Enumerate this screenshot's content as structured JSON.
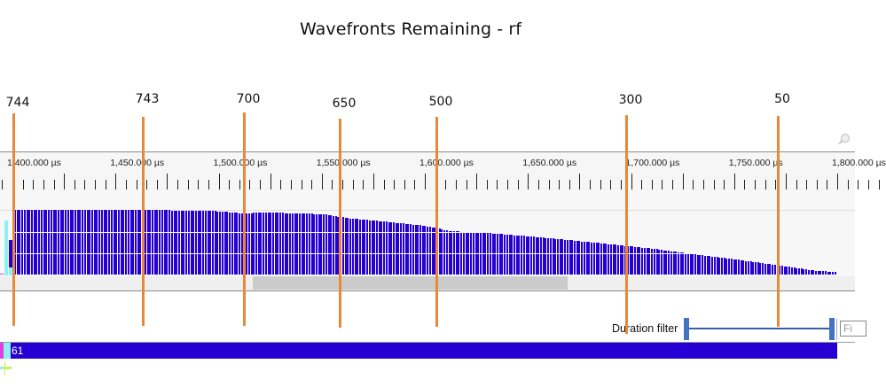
{
  "chart_data": {
    "type": "bar",
    "title": "Wavefronts Remaining - rf",
    "xlabel": "",
    "ylabel": "",
    "x_unit": "µs",
    "x_ticks": [
      "1,400.000 µs",
      "1,450.000 µs",
      "1,500.000 µs",
      "1,550.000 µs",
      "1,600.000 µs",
      "1,650.000 µs",
      "1,700.000 µs",
      "1,750.000 µs",
      "1,800.000 µs"
    ],
    "x_tick_values": [
      1400,
      1450,
      1500,
      1550,
      1600,
      1650,
      1700,
      1750,
      1800
    ],
    "xlim": [
      1397,
      1822
    ],
    "ylim": [
      0,
      744
    ],
    "annotations": [
      {
        "label": "744",
        "x_us": 1398
      },
      {
        "label": "743",
        "x_us": 1464
      },
      {
        "label": "700",
        "x_us": 1513
      },
      {
        "label": "650",
        "x_us": 1562
      },
      {
        "label": "500",
        "x_us": 1612
      },
      {
        "label": "300",
        "x_us": 1709
      },
      {
        "label": "50",
        "x_us": 1787
      }
    ],
    "series": [
      {
        "name": "Wavefronts Remaining",
        "x_start_us": 1398,
        "x_end_us": 1821,
        "profile": [
          [
            1398,
            744
          ],
          [
            1470,
            743
          ],
          [
            1482,
            735
          ],
          [
            1500,
            728
          ],
          [
            1513,
            700
          ],
          [
            1518,
            712
          ],
          [
            1540,
            706
          ],
          [
            1552,
            690
          ],
          [
            1562,
            650
          ],
          [
            1580,
            610
          ],
          [
            1600,
            560
          ],
          [
            1612,
            500
          ],
          [
            1630,
            478
          ],
          [
            1650,
            440
          ],
          [
            1670,
            395
          ],
          [
            1690,
            348
          ],
          [
            1709,
            300
          ],
          [
            1730,
            235
          ],
          [
            1750,
            175
          ],
          [
            1770,
            110
          ],
          [
            1787,
            50
          ],
          [
            1800,
            25
          ],
          [
            1810,
            15
          ],
          [
            1821,
            10
          ]
        ]
      }
    ],
    "grid": true,
    "legend": null
  },
  "timeline": {
    "duration_filter_label": "Duration filter",
    "filter_input_placeholder": "Fi",
    "lane_label": "61"
  },
  "colors": {
    "bar": "#2600d3",
    "marker": "#e8893a",
    "filter_handle": "#4472c4",
    "cyan": "#8ef0f0",
    "magenta": "#e040e0"
  }
}
